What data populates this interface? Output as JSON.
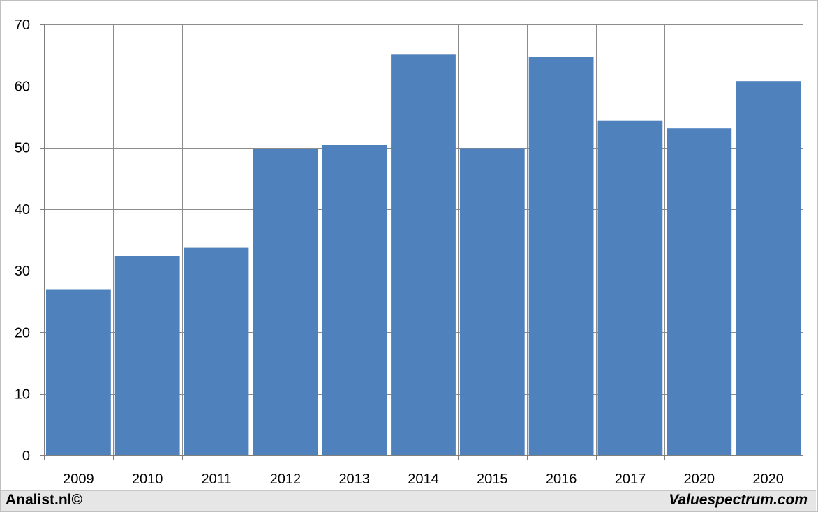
{
  "chart_data": {
    "type": "bar",
    "categories": [
      "2009",
      "2010",
      "2011",
      "2012",
      "2013",
      "2014",
      "2015",
      "2016",
      "2017",
      "2020",
      "2020"
    ],
    "values": [
      26.9,
      32.4,
      33.8,
      49.8,
      50.4,
      65.1,
      49.9,
      64.7,
      54.4,
      53.1,
      60.8
    ],
    "title": "",
    "xlabel": "",
    "ylabel": "",
    "ylim": [
      0,
      70
    ],
    "yticks": [
      0,
      10,
      20,
      30,
      40,
      50,
      60,
      70
    ],
    "grid": true,
    "legend": "none",
    "bar_color": "#4f81bd",
    "grid_color": "#8c8c8c"
  },
  "footer": {
    "left_credit": "Analist.nl©",
    "right_credit": "Valuespectrum.com",
    "background": "#e6e6e6"
  }
}
